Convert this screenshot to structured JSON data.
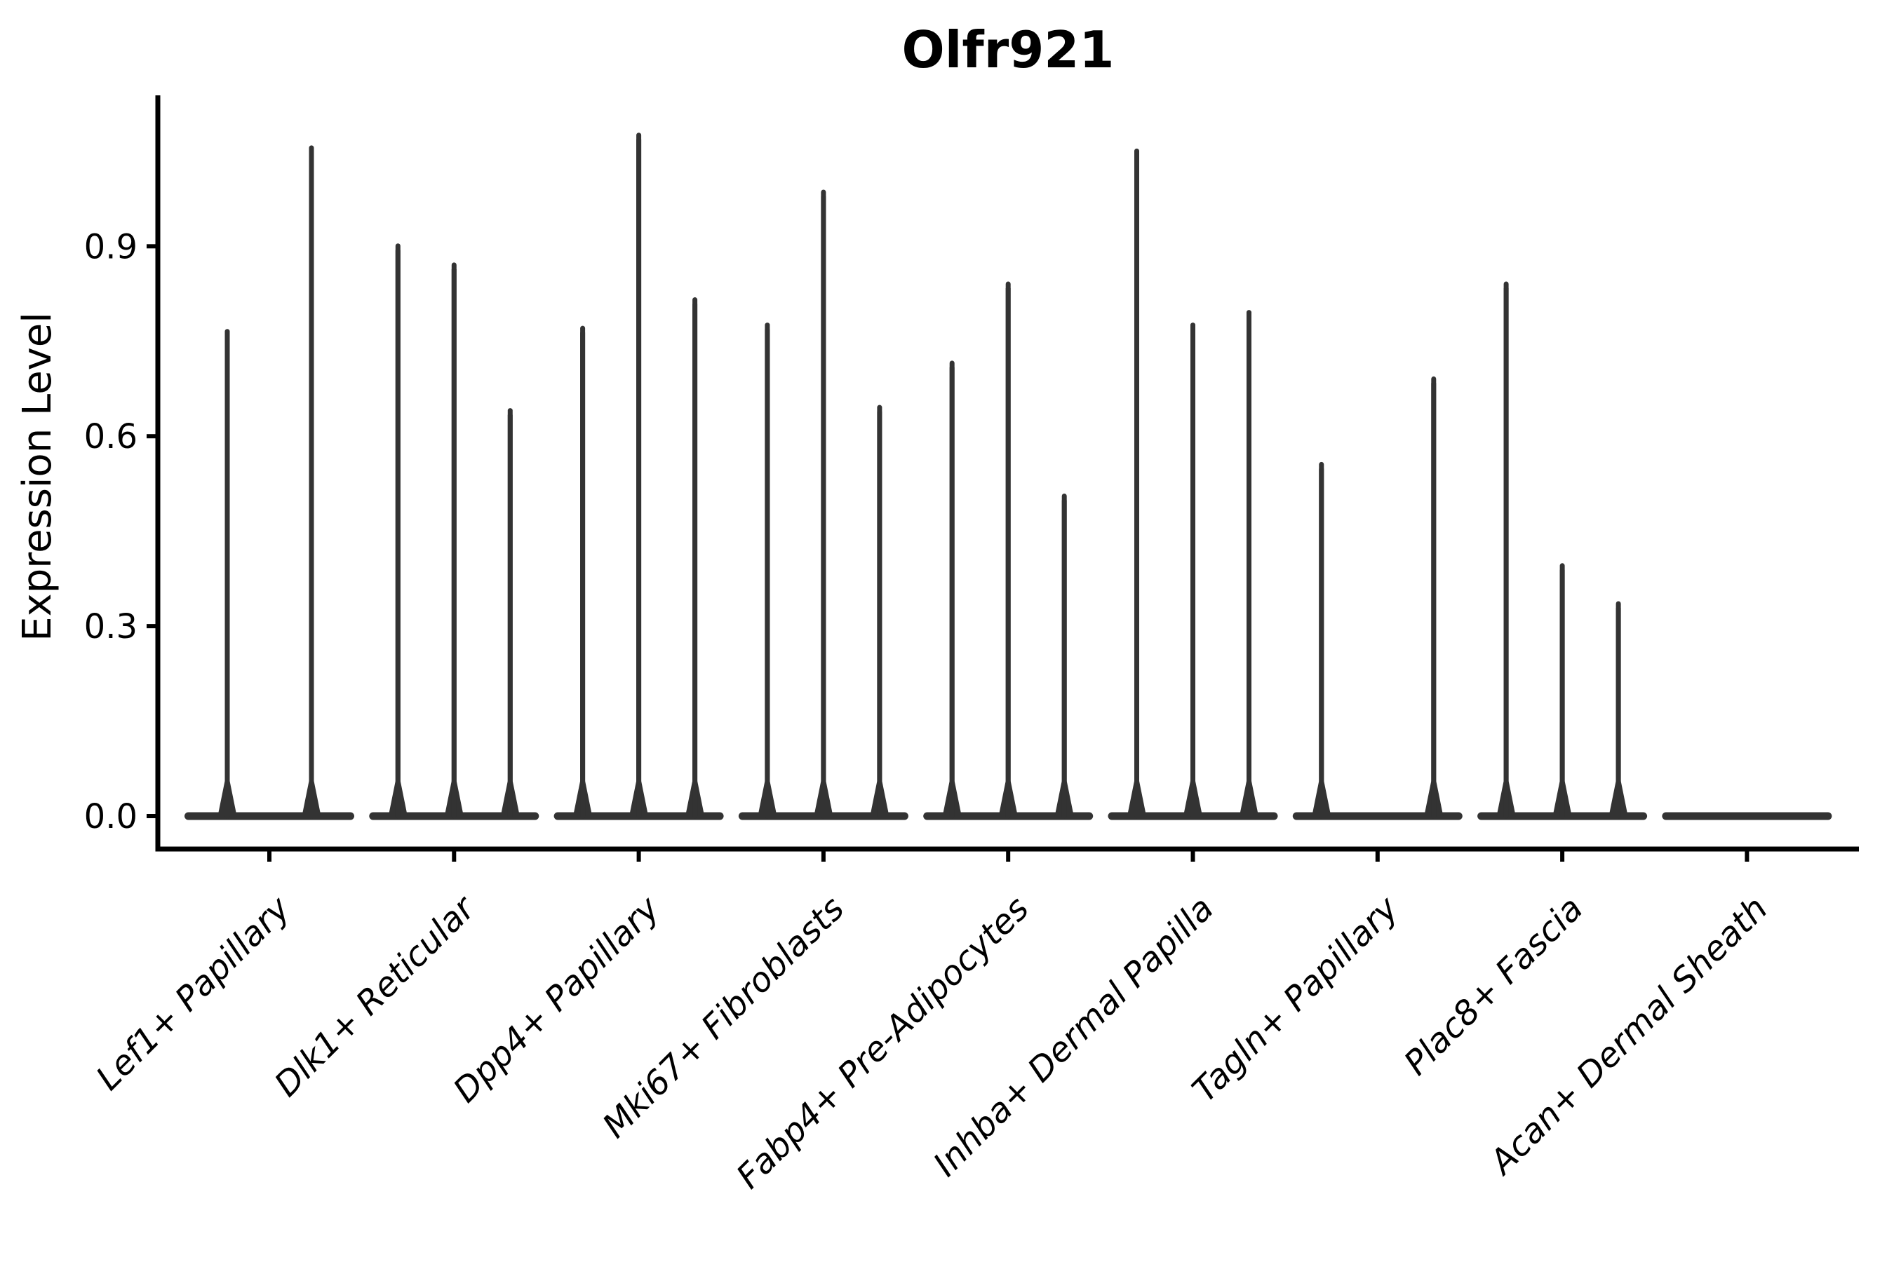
{
  "title": "Olfr921",
  "colors": {
    "background": "#ffffff",
    "axis": "#000000",
    "text": "#000000",
    "violin": "#333333"
  },
  "chart_data": {
    "type": "violin",
    "title": "Olfr921",
    "xlabel": "",
    "ylabel": "Expression Level",
    "ylim": [
      0,
      1.15
    ],
    "grid": false,
    "legend": "none",
    "yticks": [
      0.0,
      0.3,
      0.6,
      0.9
    ],
    "ytick_labels": [
      "0.0",
      "0.3",
      "0.6",
      "0.9"
    ],
    "categories": [
      "Lef1+ Papillary",
      "Dlk1+ Reticular",
      "Dpp4+ Papillary",
      "Mki67+ Fibroblasts",
      "Fabp4+ Pre-Adipocytes",
      "Inhba+ Dermal Papilla",
      "Tagln+ Papillary",
      "Plac8+ Fascia",
      "Acan+ Dermal Sheath"
    ],
    "series": [
      {
        "category": "Lef1+ Papillary",
        "violins": [
          {
            "offset": -60,
            "max": 0.77
          },
          {
            "offset": 60,
            "max": 1.06
          }
        ]
      },
      {
        "category": "Dlk1+ Reticular",
        "violins": [
          {
            "offset": -80,
            "max": 0.905
          },
          {
            "offset": 0,
            "max": 0.875
          },
          {
            "offset": 80,
            "max": 0.645
          }
        ]
      },
      {
        "category": "Dpp4+ Papillary",
        "violins": [
          {
            "offset": -80,
            "max": 0.775
          },
          {
            "offset": 0,
            "max": 1.08
          },
          {
            "offset": 80,
            "max": 0.82
          }
        ]
      },
      {
        "category": "Mki67+ Fibroblasts",
        "violins": [
          {
            "offset": -80,
            "max": 0.78
          },
          {
            "offset": 0,
            "max": 0.99
          },
          {
            "offset": 80,
            "max": 0.65
          }
        ]
      },
      {
        "category": "Fabp4+ Pre-Adipocytes",
        "violins": [
          {
            "offset": -80,
            "max": 0.72
          },
          {
            "offset": 0,
            "max": 0.845
          },
          {
            "offset": 80,
            "max": 0.51
          }
        ]
      },
      {
        "category": "Inhba+ Dermal Papilla",
        "violins": [
          {
            "offset": -80,
            "max": 1.055
          },
          {
            "offset": 0,
            "max": 0.78
          },
          {
            "offset": 80,
            "max": 0.8
          }
        ]
      },
      {
        "category": "Tagln+ Papillary",
        "violins": [
          {
            "offset": -80,
            "max": 0.56
          },
          {
            "offset": 80,
            "max": 0.695
          }
        ]
      },
      {
        "category": "Plac8+ Fascia",
        "violins": [
          {
            "offset": -80,
            "max": 0.845
          },
          {
            "offset": 0,
            "max": 0.4
          },
          {
            "offset": 80,
            "max": 0.34
          }
        ]
      },
      {
        "category": "Acan+ Dermal Sheath",
        "violins": []
      }
    ]
  }
}
